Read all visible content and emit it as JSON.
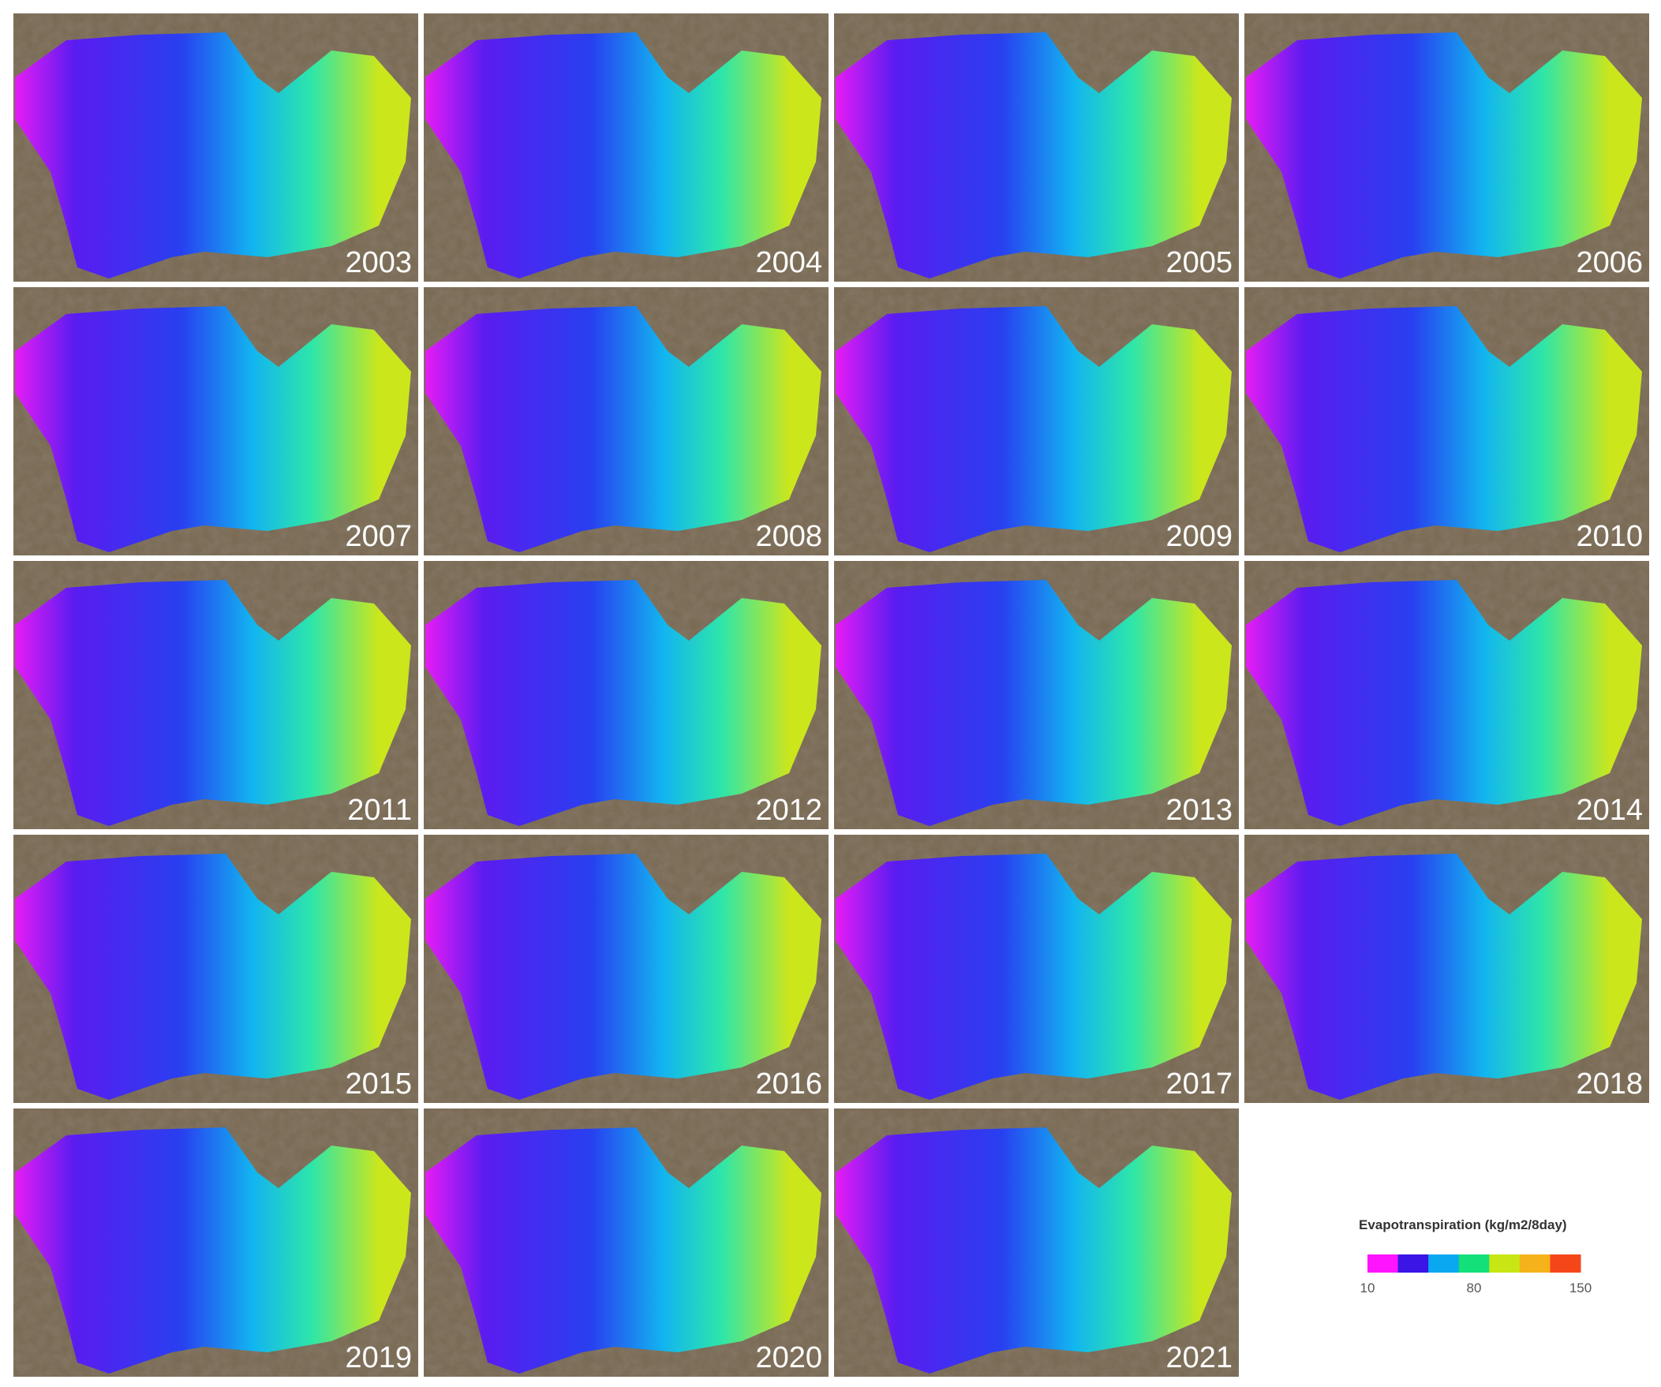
{
  "years": [
    "2003",
    "2004",
    "2005",
    "2006",
    "2007",
    "2008",
    "2009",
    "2010",
    "2011",
    "2012",
    "2013",
    "2014",
    "2015",
    "2016",
    "2017",
    "2018",
    "2019",
    "2020",
    "2021"
  ],
  "legend": {
    "title": "Evapotranspiration (kg/m2/8day)",
    "colors": [
      "#ff14ff",
      "#3b14e6",
      "#0aa8f0",
      "#14e07a",
      "#c8e614",
      "#f5b21b",
      "#f5461a"
    ],
    "range": [
      10,
      150
    ],
    "ticks": [
      10,
      80,
      150
    ]
  }
}
